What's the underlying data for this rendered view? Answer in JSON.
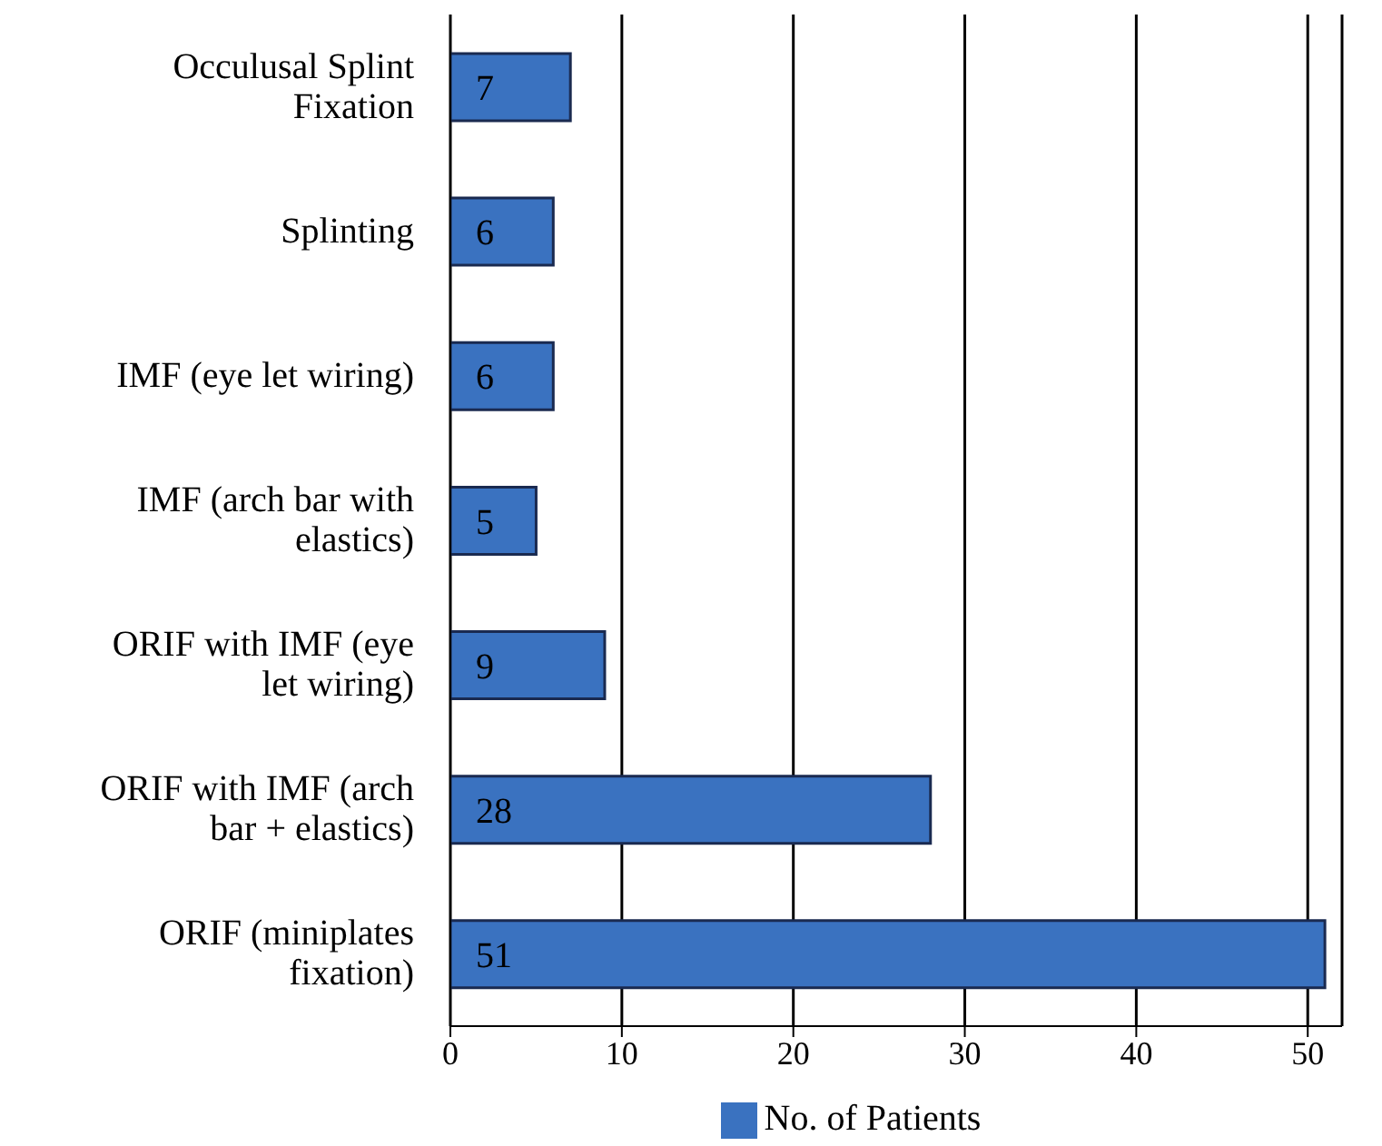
{
  "chart_data": {
    "type": "bar",
    "orientation": "horizontal",
    "categories": [
      "Occulusal Splint Fixation",
      "Splinting",
      "IMF (eye let wiring)",
      "IMF (arch bar with elastics)",
      "ORIF with IMF (eye let wiring)",
      "ORIF with IMF (arch bar + elastics)",
      "ORIF (miniplates fixation)"
    ],
    "series": [
      {
        "name": "No. of Patients",
        "color": "#3a72c0",
        "values": [
          7,
          6,
          6,
          5,
          9,
          28,
          51
        ]
      }
    ],
    "xlim": [
      0,
      52
    ],
    "xticks": [
      0,
      10,
      20,
      30,
      40,
      50
    ],
    "grid": "x",
    "legend": "bottom",
    "data_labels": true
  }
}
